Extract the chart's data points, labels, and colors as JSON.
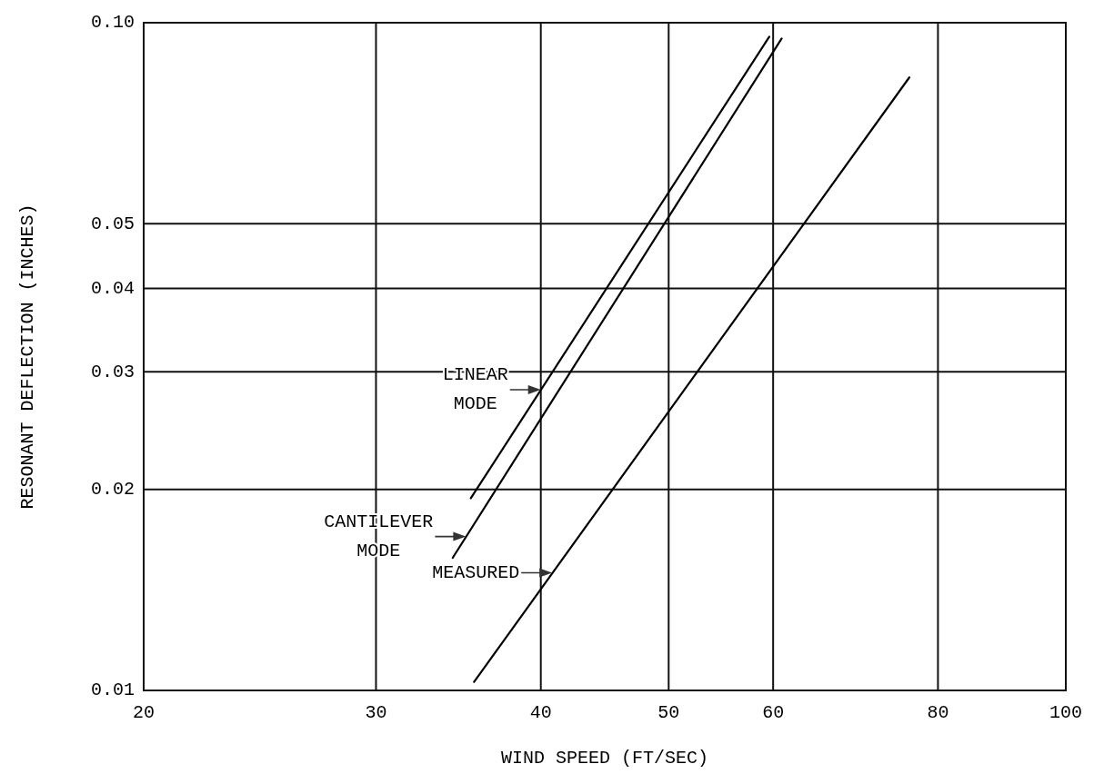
{
  "chart_data": {
    "type": "line",
    "xlabel": "WIND SPEED (FT/SEC)",
    "ylabel": "RESONANT DEFLECTION (INCHES)",
    "log": "xy",
    "grid": true,
    "line_style": "solid",
    "marker": "none",
    "xlim": [
      20,
      100
    ],
    "xticks": [
      20,
      30,
      40,
      50,
      60,
      80,
      100
    ],
    "ylim": [
      0.01,
      0.1
    ],
    "yticks": [
      0.01,
      0.02,
      0.03,
      0.04,
      0.05,
      {
        "value": 0.1,
        "label": "0.10"
      }
    ],
    "series": [
      {
        "color": "#000000",
        "x": [
          35.4,
          59.6
        ],
        "values": [
          0.0194,
          0.0953
        ]
      },
      {
        "color": "#000000",
        "x": [
          34.3,
          60.9
        ],
        "values": [
          0.0158,
          0.0947
        ]
      },
      {
        "color": "#000000",
        "x": [
          35.6,
          76.1
        ],
        "values": [
          0.0103,
          0.0828
        ]
      }
    ],
    "annotations": [
      {
        "text": "LINEAR\nMODE",
        "x": 40,
        "y": 0.0282
      },
      {
        "text": "CANTILEVER\nMODE",
        "x": 35.1,
        "y": 0.017
      },
      {
        "text": "MEASURED",
        "x": 40.8,
        "y": 0.015
      }
    ]
  }
}
